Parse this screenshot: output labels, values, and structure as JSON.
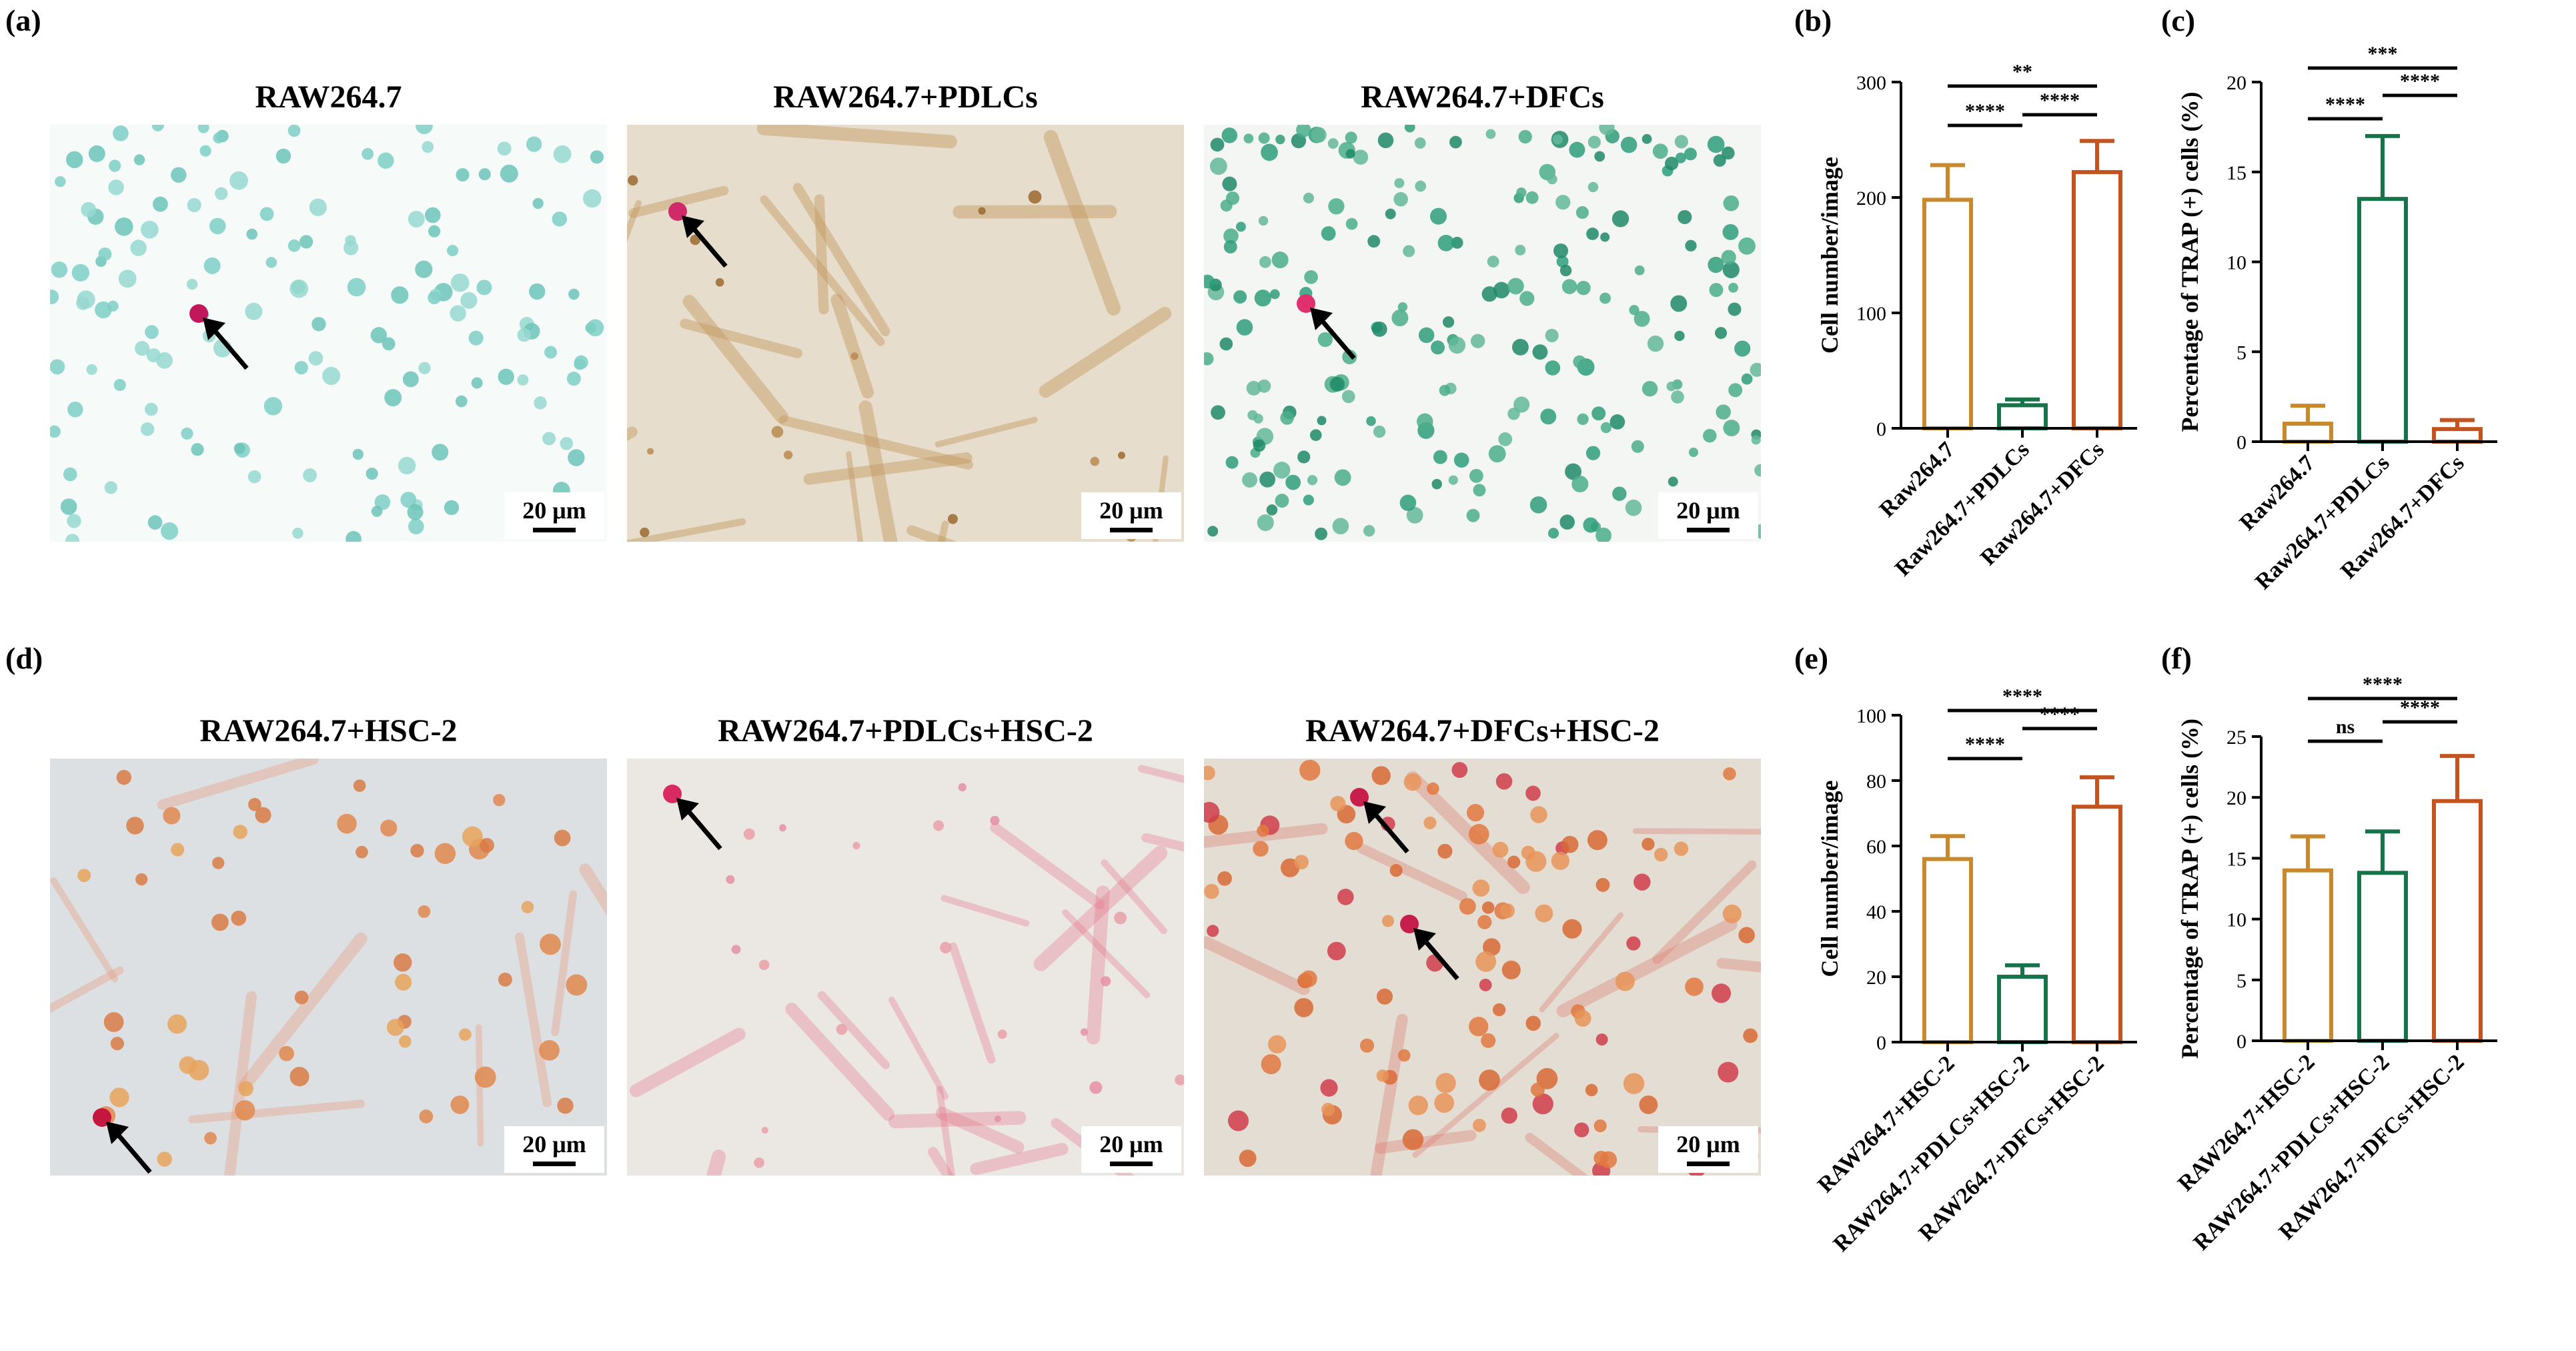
{
  "panel_labels": {
    "a": "(a)",
    "b": "(b)",
    "c": "(c)",
    "d": "(d)",
    "e": "(e)",
    "f": "(f)"
  },
  "micrographs": [
    {
      "title": "RAW264.7",
      "scale": "20 μm",
      "stain": "green-monocytes",
      "arrows": 1
    },
    {
      "title": "RAW264.7+PDLCs",
      "scale": "20 μm",
      "stain": "brown-fibroblasts",
      "arrows": 1
    },
    {
      "title": "RAW264.7+DFCs",
      "scale": "20 μm",
      "stain": "green-dense",
      "arrows": 1
    },
    {
      "title": "RAW264.7+HSC-2",
      "scale": "20 μm",
      "stain": "orange-pale",
      "arrows": 1
    },
    {
      "title": "RAW264.7+PDLCs+HSC-2",
      "scale": "20 μm",
      "stain": "pink-fibroblasts",
      "arrows": 1
    },
    {
      "title": "RAW264.7+DFCs+HSC-2",
      "scale": "20 μm",
      "stain": "orange-dense",
      "arrows": 2
    }
  ],
  "chart_data": [
    {
      "panel": "(b)",
      "type": "bar",
      "categories": [
        "Raw264.7",
        "Raw264.7+PDLCs",
        "Raw264.7+DFCs"
      ],
      "values": [
        198,
        20,
        222
      ],
      "errors": [
        30,
        5,
        27
      ],
      "colors": [
        "#c8892c",
        "#17744a",
        "#c4531f"
      ],
      "ylabel": "Cell number/image",
      "ylim": [
        0,
        300
      ],
      "yticks": [
        0,
        100,
        200,
        300
      ],
      "significance": [
        {
          "from": 0,
          "to": 1,
          "label": "****"
        },
        {
          "from": 1,
          "to": 2,
          "label": "****"
        },
        {
          "from": 0,
          "to": 2,
          "label": "**"
        }
      ]
    },
    {
      "panel": "(c)",
      "type": "bar",
      "categories": [
        "Raw264.7",
        "Raw264.7+PDLCs",
        "Raw264.7+DFCs"
      ],
      "values": [
        1.0,
        13.5,
        0.7
      ],
      "errors": [
        1.0,
        3.5,
        0.5
      ],
      "colors": [
        "#c8892c",
        "#17744a",
        "#c4531f"
      ],
      "ylabel": "Percentage of TRAP (+) cells (%)",
      "ylim": [
        0,
        20
      ],
      "yticks": [
        0,
        5,
        10,
        15,
        20
      ],
      "significance": [
        {
          "from": 0,
          "to": 1,
          "label": "****"
        },
        {
          "from": 1,
          "to": 2,
          "label": "****"
        },
        {
          "from": 0,
          "to": 2,
          "label": "***"
        }
      ]
    },
    {
      "panel": "(e)",
      "type": "bar",
      "categories": [
        "RAW264.7+HSC-2",
        "RAW264.7+PDLCs+HSC-2",
        "RAW264.7+DFCs+HSC-2"
      ],
      "values": [
        56,
        20,
        72
      ],
      "errors": [
        7,
        3.5,
        9
      ],
      "colors": [
        "#c8892c",
        "#17744a",
        "#c4531f"
      ],
      "ylabel": "Cell number/image",
      "ylim": [
        0,
        100
      ],
      "yticks": [
        0,
        20,
        40,
        60,
        80,
        100
      ],
      "significance": [
        {
          "from": 0,
          "to": 1,
          "label": "****"
        },
        {
          "from": 1,
          "to": 2,
          "label": "****"
        },
        {
          "from": 0,
          "to": 2,
          "label": "****"
        }
      ]
    },
    {
      "panel": "(f)",
      "type": "bar",
      "categories": [
        "RAW264.7+HSC-2",
        "RAW264.7+PDLCs+HSC-2",
        "RAW264.7+DFCs+HSC-2"
      ],
      "values": [
        14,
        13.8,
        19.7
      ],
      "errors": [
        2.8,
        3.4,
        3.7
      ],
      "colors": [
        "#c8892c",
        "#17744a",
        "#c4531f"
      ],
      "ylabel": "Percentage of TRAP (+) cells (%)",
      "ylim": [
        0,
        25
      ],
      "yticks": [
        0,
        5,
        10,
        15,
        20,
        25
      ],
      "significance": [
        {
          "from": 0,
          "to": 1,
          "label": "ns"
        },
        {
          "from": 1,
          "to": 2,
          "label": "****"
        },
        {
          "from": 0,
          "to": 2,
          "label": "****"
        }
      ]
    }
  ]
}
